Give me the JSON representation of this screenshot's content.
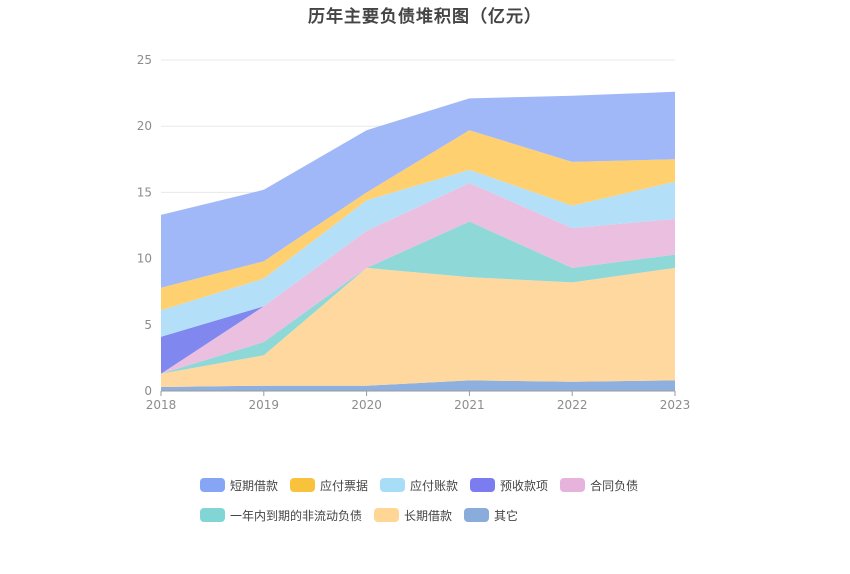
{
  "chart_data": {
    "type": "area",
    "stacked": true,
    "title": "历年主要负债堆积图（亿元）",
    "x": [
      "2018",
      "2019",
      "2020",
      "2021",
      "2022",
      "2023"
    ],
    "ylim": [
      0,
      25
    ],
    "yticks": [
      0,
      5,
      10,
      15,
      20,
      25
    ],
    "grid": true,
    "legend_position": "bottom",
    "series": [
      {
        "name": "其它",
        "color": "#8eb0de",
        "values": [
          0.3,
          0.4,
          0.4,
          0.8,
          0.7,
          0.8
        ]
      },
      {
        "name": "长期借款",
        "color": "#ffd8a0",
        "values": [
          1.0,
          2.3,
          8.9,
          7.8,
          7.5,
          8.5
        ]
      },
      {
        "name": "一年内到期的非流动负债",
        "color": "#8ed8d8",
        "values": [
          0.0,
          1.0,
          0.0,
          4.2,
          1.1,
          1.0
        ]
      },
      {
        "name": "合同负债",
        "color": "#ebbfe0",
        "values": [
          0.0,
          2.7,
          2.8,
          2.9,
          3.0,
          2.7
        ]
      },
      {
        "name": "预收款项",
        "color": "#8088f0",
        "values": [
          2.8,
          0.0,
          0.0,
          0.0,
          0.0,
          0.0
        ]
      },
      {
        "name": "应付账款",
        "color": "#b3e0f8",
        "values": [
          2.0,
          2.1,
          2.3,
          1.0,
          1.7,
          2.8
        ]
      },
      {
        "name": "应付票据",
        "color": "#ffd070",
        "values": [
          1.7,
          1.3,
          0.6,
          3.0,
          3.3,
          1.7
        ]
      },
      {
        "name": "短期借款",
        "color": "#a0b8f8",
        "values": [
          5.5,
          5.4,
          4.7,
          2.4,
          5.0,
          5.1
        ]
      }
    ],
    "legend_order": [
      "短期借款",
      "应付票据",
      "应付账款",
      "预收款项",
      "合同负债",
      "一年内到期的非流动负债",
      "长期借款",
      "其它"
    ],
    "legend_colors": {
      "短期借款": "#86a5f5",
      "应付票据": "#f9c23c",
      "应付账款": "#a8ddf8",
      "预收款项": "#7b7cf0",
      "合同负债": "#e6b3dc",
      "一年内到期的非流动负债": "#82d5d5",
      "长期借款": "#ffd696",
      "其它": "#8aacdb"
    }
  }
}
